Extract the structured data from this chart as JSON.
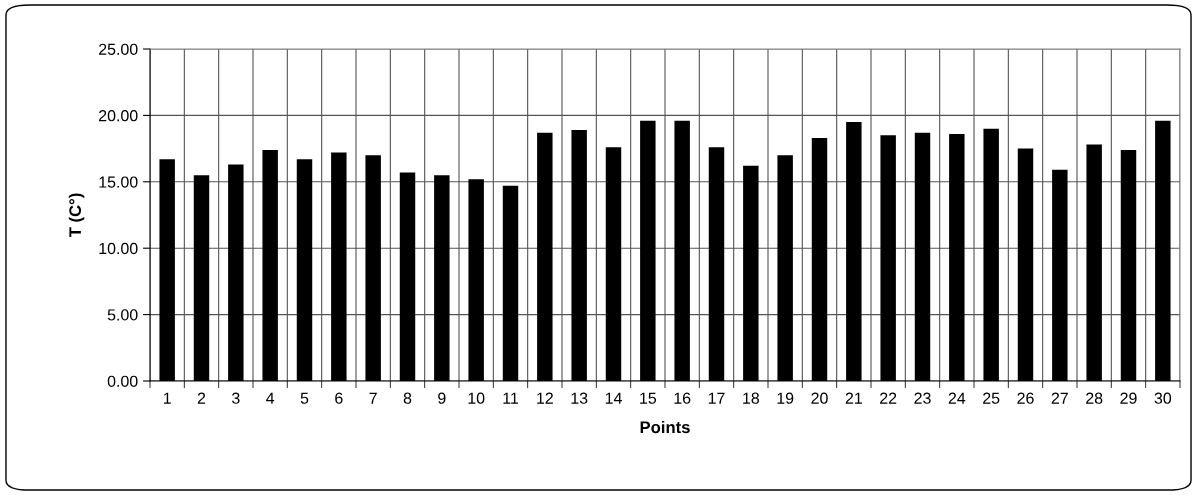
{
  "chart_data": {
    "type": "bar",
    "xlabel": "Points",
    "ylabel": "T (C°)",
    "categories": [
      "1",
      "2",
      "3",
      "4",
      "5",
      "6",
      "7",
      "8",
      "9",
      "10",
      "11",
      "12",
      "13",
      "14",
      "15",
      "16",
      "17",
      "18",
      "19",
      "20",
      "21",
      "22",
      "23",
      "24",
      "25",
      "26",
      "27",
      "28",
      "29",
      "30"
    ],
    "values": [
      16.7,
      15.5,
      16.3,
      17.4,
      16.7,
      17.2,
      17.0,
      15.7,
      15.5,
      15.2,
      14.7,
      18.7,
      18.9,
      17.6,
      19.6,
      19.6,
      17.6,
      16.2,
      17.0,
      18.3,
      19.5,
      18.5,
      18.7,
      18.6,
      19.0,
      17.5,
      15.9,
      17.8,
      17.4,
      19.6
    ],
    "color": "#000000",
    "ylim": [
      0,
      25
    ],
    "yticks": [
      {
        "value": 0,
        "label": "0.00"
      },
      {
        "value": 5,
        "label": "5.00"
      },
      {
        "value": 10,
        "label": "10.00"
      },
      {
        "value": 15,
        "label": "15.00"
      },
      {
        "value": 20,
        "label": "20.00"
      },
      {
        "value": 25,
        "label": "25.00"
      }
    ],
    "grid": true
  }
}
